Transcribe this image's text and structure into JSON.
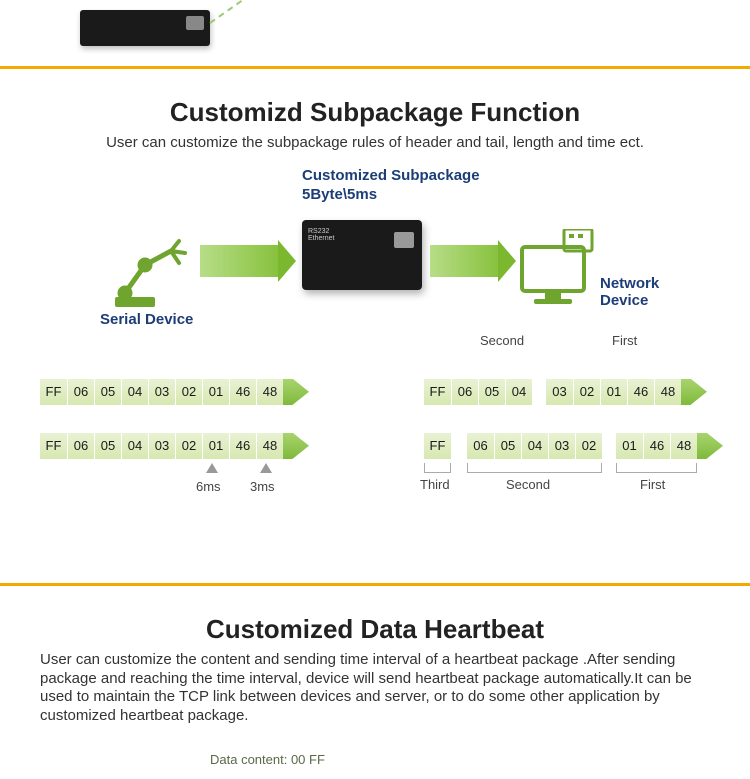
{
  "colors": {
    "gold": "#f2a900",
    "arrow_start": "#b7dd87",
    "arrow_end": "#7cb82f",
    "label_blue": "#1c3d78",
    "byte_bg_top": "#e9f2d4",
    "byte_bg_bottom": "#d7e8b0"
  },
  "section1": {
    "title": "Customizd Subpackage Function",
    "subtitle": "User can customize the subpackage rules of header and tail, length and time ect.",
    "labels": {
      "serial": "Serial Device",
      "custom": "Customized Subpackage\n5Byte\\5ms",
      "network": "Network\nDevice"
    },
    "left_rows": [
      [
        "FF",
        "06",
        "05",
        "04",
        "03",
        "02",
        "01",
        "46",
        "48"
      ],
      [
        "FF",
        "06",
        "05",
        "04",
        "03",
        "02",
        "01",
        "46",
        "48"
      ]
    ],
    "time_marks": {
      "t6": "6ms",
      "t3": "3ms"
    },
    "right": {
      "top_labels": {
        "second": "Second",
        "first": "First"
      },
      "row1": {
        "second": [
          "FF",
          "06",
          "05",
          "04"
        ],
        "first": [
          "03",
          "02",
          "01",
          "46",
          "48"
        ]
      },
      "row2": {
        "third": [
          "FF"
        ],
        "second": [
          "06",
          "05",
          "04",
          "03",
          "02"
        ],
        "first": [
          "01",
          "46",
          "48"
        ]
      },
      "bottom_labels": {
        "third": "Third",
        "second": "Second",
        "first": "First"
      }
    }
  },
  "section2": {
    "title": "Customized Data Heartbeat",
    "body": "User can customize the content and sending time interval of a heartbeat package .After sending package and reaching the time interval, device will send heartbeat package automatically.It can be used to maintain the TCP link between devices and server, or to do some other application by customized heartbeat package.",
    "footer": "Data content: 00 FF"
  }
}
